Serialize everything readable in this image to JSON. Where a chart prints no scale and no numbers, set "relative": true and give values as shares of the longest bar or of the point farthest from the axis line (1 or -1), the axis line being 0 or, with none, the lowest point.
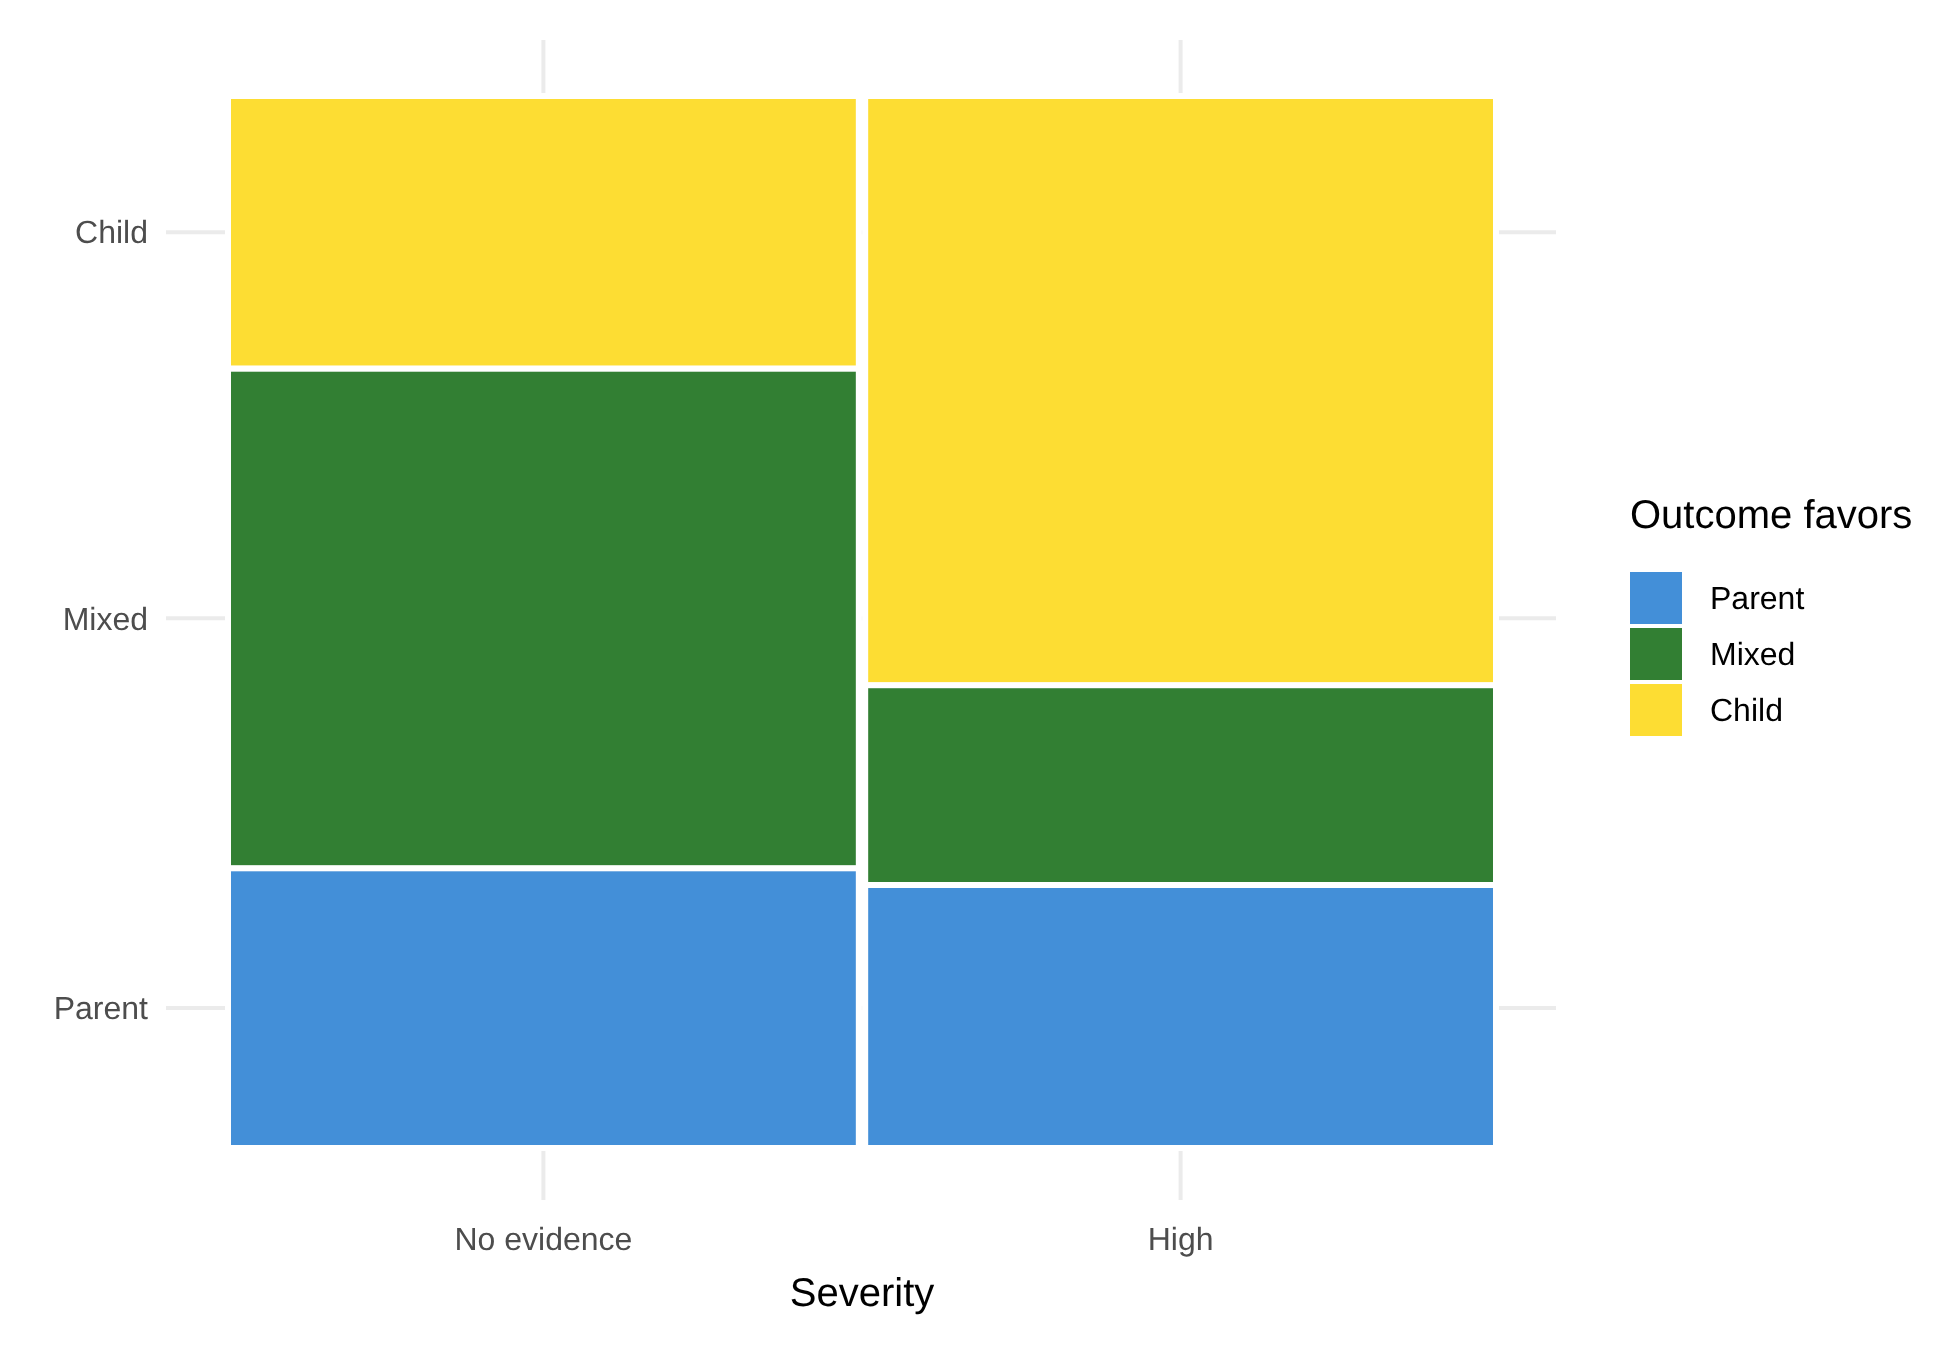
{
  "chart_data": {
    "type": "bar",
    "stacked": true,
    "relative": true,
    "xlabel": "Severity",
    "legend_title": "Outcome favors",
    "legend": "right",
    "grid": true,
    "categories": [
      "No evidence",
      "High"
    ],
    "series": [
      {
        "name": "Parent",
        "color": "#438fd8",
        "values": [
          0.266,
          0.25
        ]
      },
      {
        "name": "Mixed",
        "color": "#327f33",
        "values": [
          0.475,
          0.19
        ]
      },
      {
        "name": "Child",
        "color": "#fddd33",
        "values": [
          0.259,
          0.56
        ]
      }
    ]
  }
}
